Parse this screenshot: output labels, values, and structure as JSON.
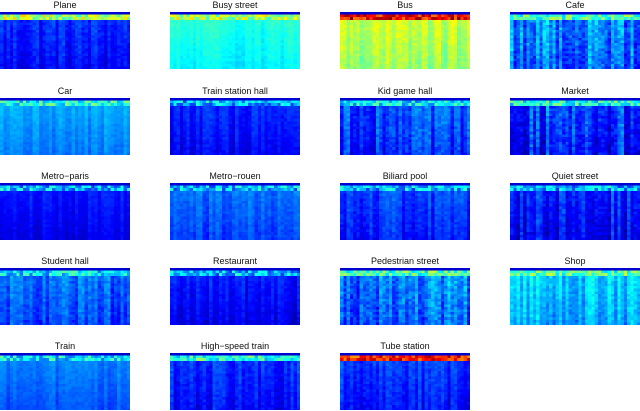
{
  "chart_data": {
    "type": "heatmap",
    "colormap": "jet",
    "grid": false,
    "layout": {
      "rows": 5,
      "cols": 4
    },
    "panels": [
      {
        "title": "Plane",
        "mean_level": 0.12,
        "top_band_level": 0.55,
        "texture": 0.05
      },
      {
        "title": "Busy street",
        "mean_level": 0.36,
        "top_band_level": 0.55,
        "texture": 0.03
      },
      {
        "title": "Bus",
        "mean_level": 0.52,
        "top_band_level": 0.88,
        "texture": 0.05
      },
      {
        "title": "Cafe",
        "mean_level": 0.22,
        "top_band_level": 0.45,
        "texture": 0.1
      },
      {
        "title": "Car",
        "mean_level": 0.24,
        "top_band_level": 0.4,
        "texture": 0.03
      },
      {
        "title": "Train station hall",
        "mean_level": 0.11,
        "top_band_level": 0.3,
        "texture": 0.04
      },
      {
        "title": "Kid game hall",
        "mean_level": 0.15,
        "top_band_level": 0.35,
        "texture": 0.07
      },
      {
        "title": "Market",
        "mean_level": 0.14,
        "top_band_level": 0.4,
        "texture": 0.09
      },
      {
        "title": "Metro−paris",
        "mean_level": 0.1,
        "top_band_level": 0.3,
        "texture": 0.03
      },
      {
        "title": "Metro−rouen",
        "mean_level": 0.18,
        "top_band_level": 0.3,
        "texture": 0.04
      },
      {
        "title": "Biliard pool",
        "mean_level": 0.14,
        "top_band_level": 0.3,
        "texture": 0.05
      },
      {
        "title": "Quiet street",
        "mean_level": 0.12,
        "top_band_level": 0.3,
        "texture": 0.07
      },
      {
        "title": "Student hall",
        "mean_level": 0.18,
        "top_band_level": 0.35,
        "texture": 0.06
      },
      {
        "title": "Restaurant",
        "mean_level": 0.1,
        "top_band_level": 0.3,
        "texture": 0.04
      },
      {
        "title": "Pedestrian street",
        "mean_level": 0.2,
        "top_band_level": 0.45,
        "texture": 0.09
      },
      {
        "title": "Shop",
        "mean_level": 0.28,
        "top_band_level": 0.45,
        "texture": 0.06
      },
      {
        "title": "Train",
        "mean_level": 0.2,
        "top_band_level": 0.35,
        "texture": 0.03
      },
      {
        "title": "High−speed train",
        "mean_level": 0.13,
        "top_band_level": 0.4,
        "texture": 0.05
      },
      {
        "title": "Tube station",
        "mean_level": 0.13,
        "top_band_level": 0.85,
        "texture": 0.05
      }
    ]
  }
}
